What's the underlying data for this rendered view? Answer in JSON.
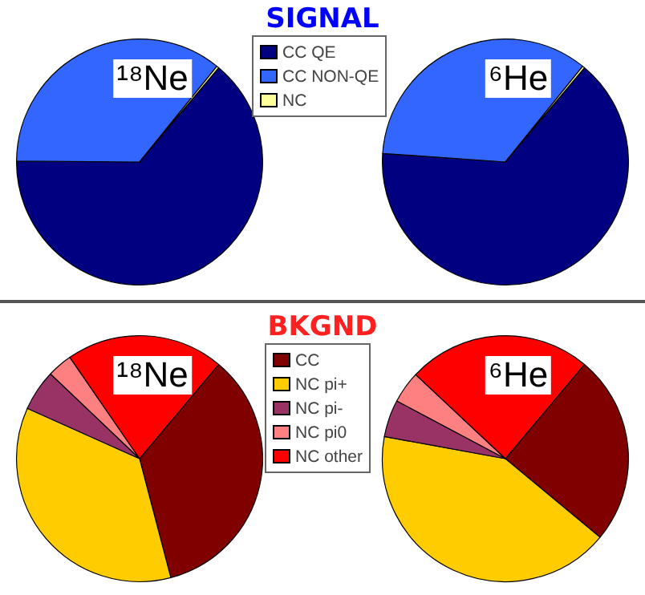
{
  "chart_data": [
    {
      "type": "pie",
      "title": "SIGNAL",
      "legend": "top",
      "categories": [
        "CC QE",
        "CC NON-QE",
        "NC"
      ],
      "colors": [
        "#000080",
        "#3366ff",
        "#ffff99"
      ],
      "series": [
        {
          "name": "¹⁸Ne",
          "values": [
            64,
            35.7,
            0.3
          ]
        },
        {
          "name": "⁶He",
          "values": [
            65,
            34.7,
            0.3
          ]
        }
      ]
    },
    {
      "type": "pie",
      "title": "BKGND",
      "legend": "top",
      "categories": [
        "CC",
        "NC pi+",
        "NC pi-",
        "NC pi0",
        "NC other"
      ],
      "colors": [
        "#800000",
        "#ffcc00",
        "#993366",
        "#ff8080",
        "#ff0000"
      ],
      "series": [
        {
          "name": "¹⁸Ne",
          "values": [
            34.8,
            35.8,
            5.4,
            3.3,
            20.7
          ]
        },
        {
          "name": "⁶He",
          "values": [
            24.9,
            41.8,
            4.9,
            4.2,
            24.1
          ]
        }
      ]
    }
  ]
}
